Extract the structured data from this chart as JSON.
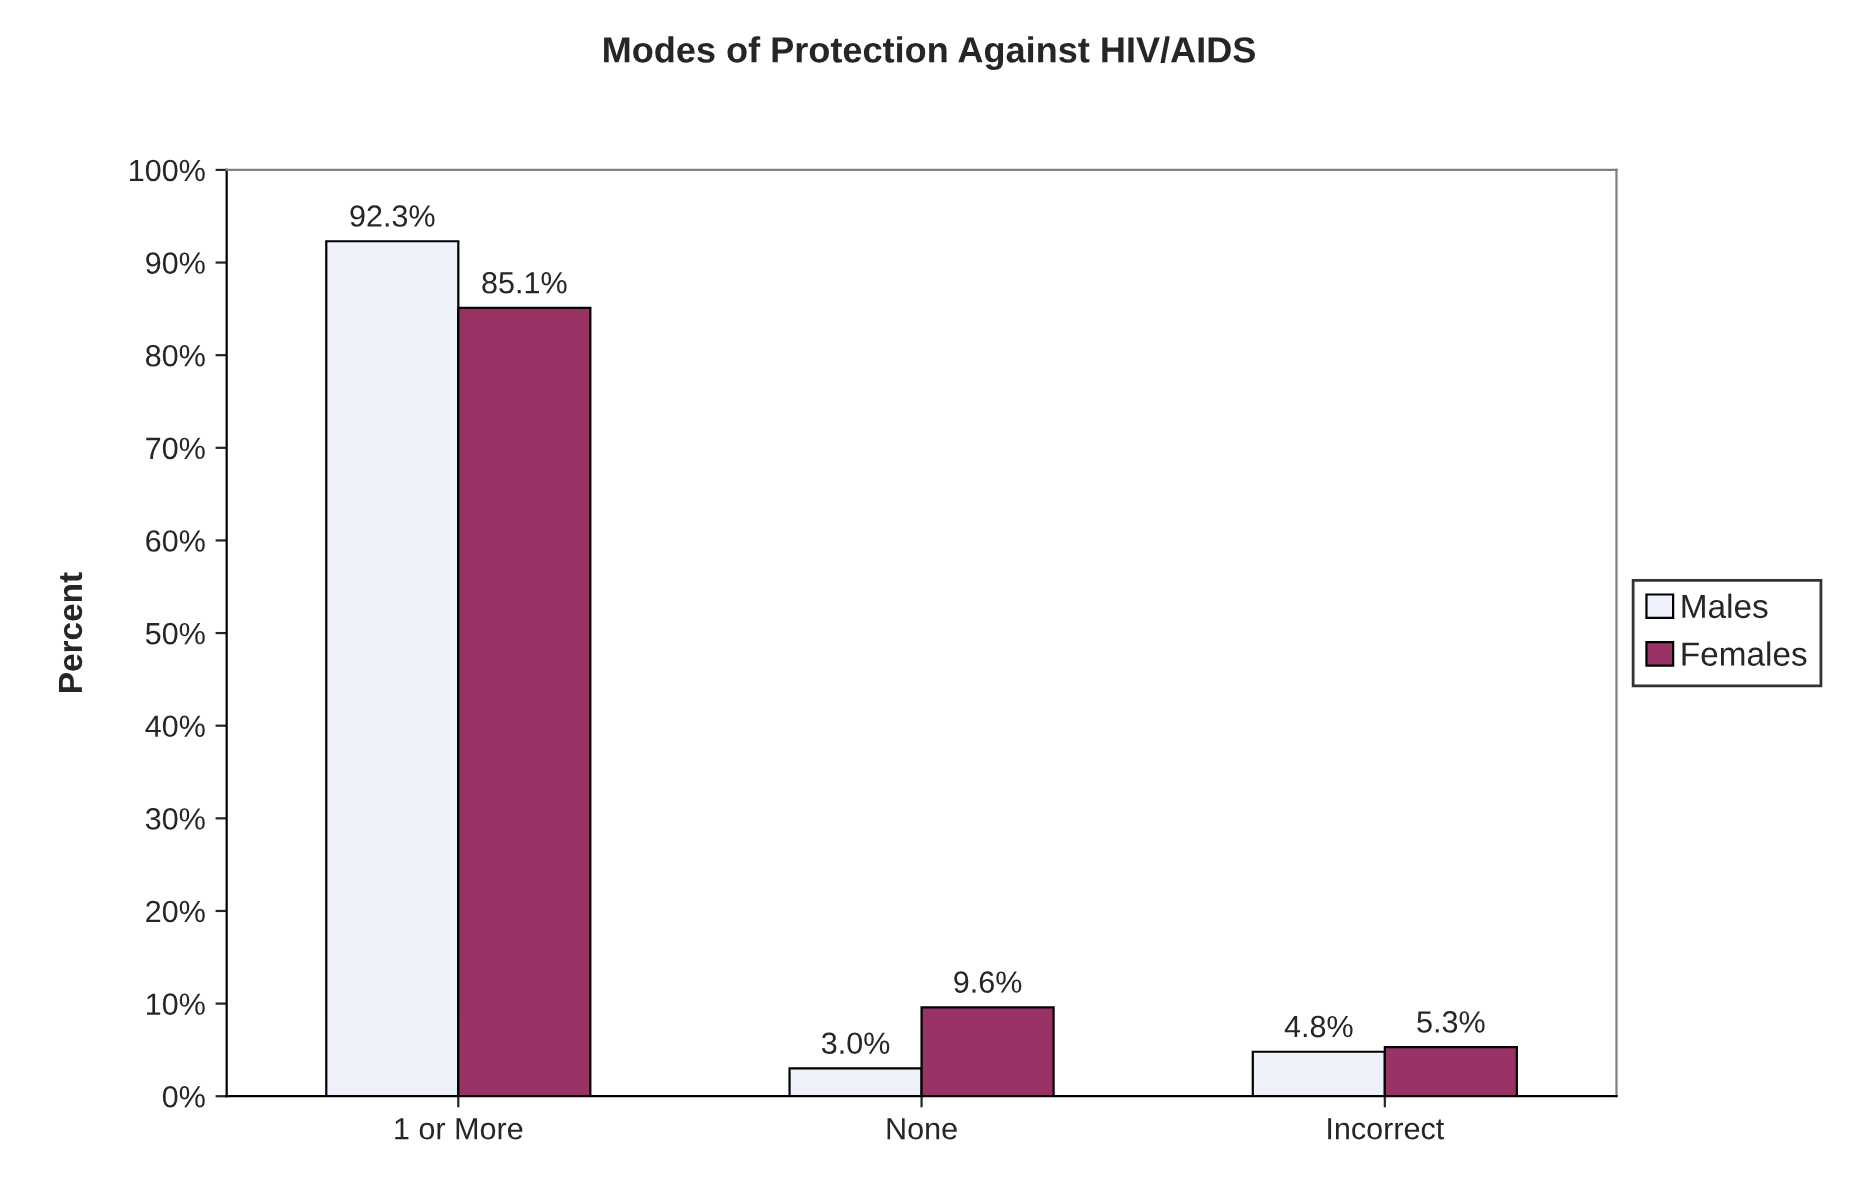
{
  "chart_data": {
    "type": "bar",
    "title": "Modes of Protection Against HIV/AIDS",
    "ylabel": "Percent",
    "categories": [
      "1 or More",
      "None",
      "Incorrect"
    ],
    "series": [
      {
        "name": "Males",
        "color": "#eef0fa",
        "values": [
          92.3,
          3.0,
          4.8
        ],
        "value_labels": [
          "92.3%",
          "3.0%",
          "4.8%"
        ]
      },
      {
        "name": "Females",
        "color": "#993366",
        "values": [
          85.1,
          9.6,
          5.3
        ],
        "value_labels": [
          "85.1%",
          "9.6%",
          "5.3%"
        ]
      }
    ],
    "ylim": [
      0,
      100
    ],
    "yticks": [
      {
        "value": 0,
        "label": "0%"
      },
      {
        "value": 10,
        "label": "10%"
      },
      {
        "value": 20,
        "label": "20%"
      },
      {
        "value": 30,
        "label": "30%"
      },
      {
        "value": 40,
        "label": "40%"
      },
      {
        "value": 50,
        "label": "50%"
      },
      {
        "value": 60,
        "label": "60%"
      },
      {
        "value": 70,
        "label": "70%"
      },
      {
        "value": 80,
        "label": "80%"
      },
      {
        "value": 90,
        "label": "90%"
      },
      {
        "value": 100,
        "label": "100%"
      }
    ],
    "grid": false,
    "legend": "right"
  }
}
